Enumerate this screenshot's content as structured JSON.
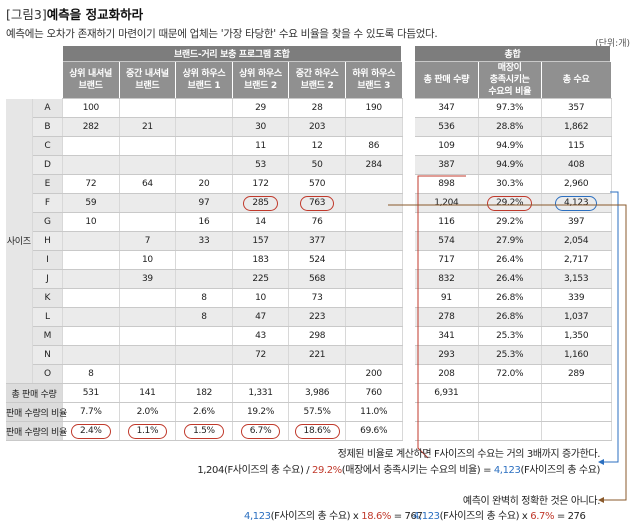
{
  "figure": {
    "label": "[그림3]",
    "title": "예측을 정교화하라"
  },
  "subtitle": "예측에는 오차가 존재하기 마련이기 때문에 업체는 '가장 타당한' 수요 비율을 찾을 수 있도록 다듬었다.",
  "unit": "(단위:개)",
  "headers": {
    "group1": "브랜드-거리 보충 프로그램 조합",
    "group2": "총합",
    "cols": [
      "상위 내셔널\n브랜드",
      "중간 내셔널\n브랜드",
      "상위 하우스\n브랜드 1",
      "상위 하우스\n브랜드 2",
      "중간 하우스\n브랜드 2",
      "하위 하우스\n브랜드 3"
    ],
    "totals": [
      "총 판매 수량",
      "매장이\n충족시키는\n수요의 비율",
      "총 수요"
    ]
  },
  "side_label": "사이즈",
  "rows": [
    {
      "size": "A",
      "vals": [
        "100",
        "",
        "",
        "29",
        "28",
        "190"
      ],
      "sales": "347",
      "pct": "97.3%",
      "demand": "357"
    },
    {
      "size": "B",
      "vals": [
        "282",
        "21",
        "",
        "30",
        "203",
        ""
      ],
      "sales": "536",
      "pct": "28.8%",
      "demand": "1,862"
    },
    {
      "size": "C",
      "vals": [
        "",
        "",
        "",
        "11",
        "12",
        "86"
      ],
      "sales": "109",
      "pct": "94.9%",
      "demand": "115"
    },
    {
      "size": "D",
      "vals": [
        "",
        "",
        "",
        "53",
        "50",
        "284"
      ],
      "sales": "387",
      "pct": "94.9%",
      "demand": "408"
    },
    {
      "size": "E",
      "vals": [
        "72",
        "64",
        "20",
        "172",
        "570",
        ""
      ],
      "sales": "898",
      "pct": "30.3%",
      "demand": "2,960"
    },
    {
      "size": "F",
      "vals": [
        "59",
        "",
        "97",
        "285",
        "763",
        ""
      ],
      "sales": "1,204",
      "pct": "29.2%",
      "demand": "4,123"
    },
    {
      "size": "G",
      "vals": [
        "10",
        "",
        "16",
        "14",
        "76",
        ""
      ],
      "sales": "116",
      "pct": "29.2%",
      "demand": "397"
    },
    {
      "size": "H",
      "vals": [
        "",
        "7",
        "33",
        "157",
        "377",
        ""
      ],
      "sales": "574",
      "pct": "27.9%",
      "demand": "2,054"
    },
    {
      "size": "I",
      "vals": [
        "",
        "10",
        "",
        "183",
        "524",
        ""
      ],
      "sales": "717",
      "pct": "26.4%",
      "demand": "2,717"
    },
    {
      "size": "J",
      "vals": [
        "",
        "39",
        "",
        "225",
        "568",
        ""
      ],
      "sales": "832",
      "pct": "26.4%",
      "demand": "3,153"
    },
    {
      "size": "K",
      "vals": [
        "",
        "",
        "8",
        "10",
        "73",
        ""
      ],
      "sales": "91",
      "pct": "26.8%",
      "demand": "339"
    },
    {
      "size": "L",
      "vals": [
        "",
        "",
        "8",
        "47",
        "223",
        ""
      ],
      "sales": "278",
      "pct": "26.8%",
      "demand": "1,037"
    },
    {
      "size": "M",
      "vals": [
        "",
        "",
        "",
        "43",
        "298",
        ""
      ],
      "sales": "341",
      "pct": "25.3%",
      "demand": "1,350"
    },
    {
      "size": "N",
      "vals": [
        "",
        "",
        "",
        "72",
        "221",
        ""
      ],
      "sales": "293",
      "pct": "25.3%",
      "demand": "1,160"
    },
    {
      "size": "O",
      "vals": [
        "8",
        "",
        "",
        "",
        "",
        "200"
      ],
      "sales": "208",
      "pct": "72.0%",
      "demand": "289"
    }
  ],
  "total_row": {
    "label": "총 판매 수량",
    "vals": [
      "531",
      "141",
      "182",
      "1,331",
      "3,986",
      "760"
    ],
    "sales": "6,931"
  },
  "ratio_row": {
    "label": "판매 수량의 비율",
    "vals": [
      "7.7%",
      "2.0%",
      "2.6%",
      "19.2%",
      "57.5%",
      "11.0%"
    ]
  },
  "ratio_row2": {
    "label": "판매 수량의 비율",
    "vals": [
      "2.4%",
      "1.1%",
      "1.5%",
      "6.7%",
      "18.6%",
      "69.6%"
    ]
  },
  "annotations": {
    "a1_line1": "정제된 비율로 계산하면 F사이즈의 수요는 거의 3배까지 증가한다.",
    "a1_p1": "1,204(F사이즈의 총 수요) / ",
    "a1_red": "29.2%",
    "a1_p2": "(매장에서 충족시키는 수요의 비율) = ",
    "a1_blue": "4,123",
    "a1_p3": "(F사이즈의 총 수요)",
    "a2_line1": "예측이 완벽히 정확한 것은 아니다.",
    "a2_left_blue": "4,123",
    "a2_left_p1": "(F사이즈의 총 수요) x ",
    "a2_left_red": "18.6%",
    "a2_left_p2": " = 767",
    "a2_right_blue": "4,123",
    "a2_right_p1": "(F사이즈의 총 수요) x ",
    "a2_right_red": "6.7%",
    "a2_right_p2": " = 276"
  }
}
